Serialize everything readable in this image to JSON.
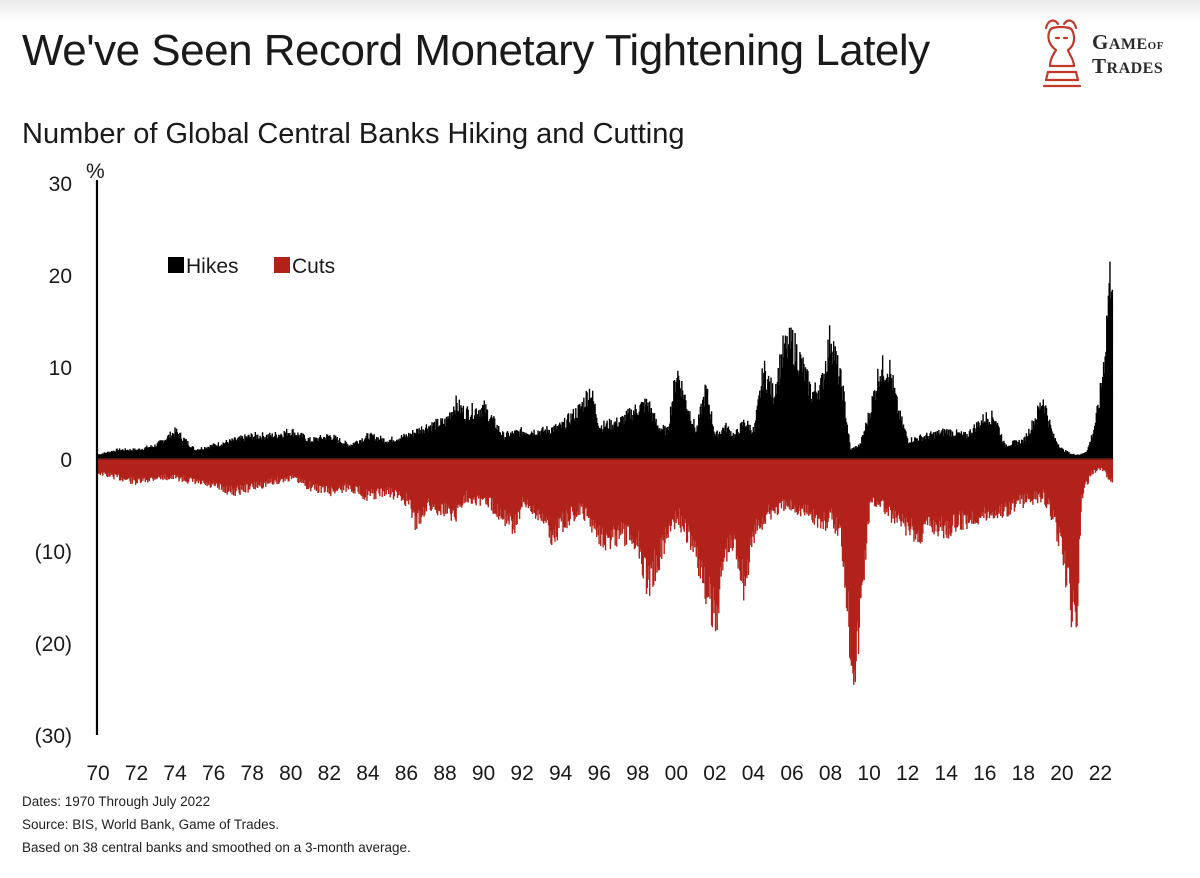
{
  "title": "We've Seen Record Monetary Tightening Lately",
  "subtitle": "Number of Global Central Banks Hiking and Cutting",
  "logo": {
    "line1_a": "G",
    "line1_b": "AME",
    "line1_of": "OF",
    "line2_a": "T",
    "line2_b": "RADES",
    "icon": "bull-chess-knight-icon",
    "color": "#c0392b"
  },
  "colors": {
    "hikes": "#000000",
    "cuts": "#b3221a",
    "text": "#1a1a1a"
  },
  "notes": [
    "Dates: 1970 Through  July 2022",
    "Source: BIS, World Bank, Game of Trades.",
    "Based on 38 central banks and smoothed on a 3-month average."
  ],
  "chart_data": {
    "type": "area",
    "title": "Number of Global Central Banks Hiking and Cutting",
    "ylabel": "%",
    "ylim": [
      -30,
      30
    ],
    "yticks": [
      30,
      20,
      10,
      0,
      -10,
      -20,
      -30
    ],
    "ytick_labels": [
      "30",
      "20",
      "10",
      "0",
      "(10)",
      "(20)",
      "(30)"
    ],
    "xlim": [
      1970,
      2022.6
    ],
    "xticks": [
      1970,
      1972,
      1974,
      1976,
      1978,
      1980,
      1982,
      1984,
      1986,
      1988,
      1990,
      1992,
      1994,
      1996,
      1998,
      2000,
      2002,
      2004,
      2006,
      2008,
      2010,
      2012,
      2014,
      2016,
      2018,
      2020,
      2022
    ],
    "xtick_labels": [
      "70",
      "72",
      "74",
      "76",
      "78",
      "80",
      "82",
      "84",
      "86",
      "88",
      "90",
      "92",
      "94",
      "96",
      "98",
      "00",
      "02",
      "04",
      "06",
      "08",
      "10",
      "12",
      "14",
      "16",
      "18",
      "20",
      "22"
    ],
    "legend_position": "top-left",
    "grid": false,
    "series": [
      {
        "name": "Hikes",
        "x": [
          1970.0,
          1971.0,
          1972.0,
          1973.0,
          1974.0,
          1974.5,
          1975.0,
          1976.0,
          1977.0,
          1978.0,
          1979.0,
          1980.0,
          1981.0,
          1982.0,
          1983.0,
          1984.0,
          1985.0,
          1986.0,
          1987.0,
          1988.0,
          1988.5,
          1989.0,
          1990.0,
          1991.0,
          1992.0,
          1993.0,
          1994.0,
          1995.0,
          1995.5,
          1996.0,
          1997.0,
          1998.0,
          1998.5,
          1999.0,
          1999.5,
          2000.0,
          2000.5,
          2001.0,
          2001.5,
          2002.0,
          2002.5,
          2003.0,
          2003.5,
          2004.0,
          2004.5,
          2005.0,
          2005.5,
          2006.0,
          2006.5,
          2007.0,
          2007.5,
          2008.0,
          2008.3,
          2008.6,
          2009.0,
          2009.5,
          2010.0,
          2010.5,
          2011.0,
          2011.5,
          2012.0,
          2013.0,
          2014.0,
          2015.0,
          2016.0,
          2016.5,
          2017.0,
          2018.0,
          2018.5,
          2019.0,
          2019.5,
          2020.0,
          2020.5,
          2021.0,
          2021.3,
          2021.6,
          2021.9,
          2022.2,
          2022.4,
          2022.6
        ],
        "values": [
          0.5,
          1.0,
          1.0,
          1.5,
          3.0,
          2.0,
          1.0,
          1.5,
          2.0,
          2.5,
          2.5,
          3.0,
          2.0,
          2.5,
          1.5,
          2.5,
          2.0,
          2.5,
          3.5,
          4.0,
          6.0,
          5.0,
          5.5,
          2.5,
          3.0,
          3.0,
          3.5,
          5.5,
          7.5,
          3.5,
          4.0,
          5.5,
          6.0,
          3.5,
          3.0,
          9.5,
          6.0,
          3.0,
          7.5,
          2.5,
          3.5,
          2.5,
          4.0,
          3.0,
          9.5,
          7.0,
          11.5,
          12.5,
          10.0,
          7.0,
          8.0,
          13.5,
          10.0,
          7.5,
          1.0,
          1.5,
          5.0,
          9.5,
          10.0,
          5.0,
          2.0,
          2.5,
          3.0,
          2.5,
          4.5,
          4.5,
          1.5,
          2.0,
          4.0,
          6.5,
          2.5,
          1.0,
          0.5,
          0.5,
          1.0,
          3.0,
          6.0,
          11.5,
          18.5,
          21.5
        ]
      },
      {
        "name": "Cuts",
        "x": [
          1970.0,
          1971.0,
          1972.0,
          1973.0,
          1974.0,
          1975.0,
          1976.0,
          1977.0,
          1978.0,
          1979.0,
          1980.0,
          1981.0,
          1982.0,
          1983.0,
          1984.0,
          1985.0,
          1986.0,
          1986.5,
          1987.0,
          1988.0,
          1988.5,
          1989.0,
          1990.0,
          1991.0,
          1991.5,
          1992.0,
          1993.0,
          1993.5,
          1994.0,
          1995.0,
          1996.0,
          1996.5,
          1997.0,
          1998.0,
          1998.5,
          1999.0,
          1999.5,
          2000.0,
          2001.0,
          2001.5,
          2002.0,
          2002.5,
          2003.0,
          2003.5,
          2004.0,
          2004.5,
          2005.0,
          2006.0,
          2007.0,
          2007.5,
          2008.0,
          2008.5,
          2008.8,
          2009.0,
          2009.3,
          2009.6,
          2010.0,
          2010.5,
          2011.0,
          2012.0,
          2012.5,
          2013.0,
          2014.0,
          2015.0,
          2016.0,
          2017.0,
          2018.0,
          2019.0,
          2019.5,
          2020.0,
          2020.2,
          2020.5,
          2020.7,
          2021.0,
          2021.5,
          2022.0,
          2022.6
        ],
        "values": [
          -1.5,
          -2.0,
          -2.5,
          -2.0,
          -2.0,
          -2.5,
          -3.0,
          -3.5,
          -3.0,
          -2.5,
          -2.0,
          -3.0,
          -3.5,
          -3.0,
          -4.0,
          -3.5,
          -4.5,
          -7.0,
          -5.0,
          -5.5,
          -6.0,
          -4.0,
          -4.5,
          -6.0,
          -7.5,
          -5.0,
          -6.0,
          -8.5,
          -7.0,
          -5.5,
          -8.0,
          -9.0,
          -8.0,
          -9.0,
          -13.5,
          -11.0,
          -8.0,
          -6.0,
          -10.0,
          -14.5,
          -17.0,
          -10.0,
          -9.0,
          -13.5,
          -8.0,
          -6.5,
          -5.5,
          -5.0,
          -6.0,
          -7.0,
          -6.5,
          -8.0,
          -14.0,
          -20.0,
          -22.0,
          -14.0,
          -5.0,
          -4.5,
          -6.0,
          -7.5,
          -8.5,
          -7.0,
          -7.5,
          -6.5,
          -6.0,
          -5.5,
          -4.5,
          -4.0,
          -6.0,
          -10.5,
          -13.0,
          -16.0,
          -19.0,
          -4.0,
          -1.5,
          -1.0,
          -2.5
        ]
      }
    ]
  }
}
